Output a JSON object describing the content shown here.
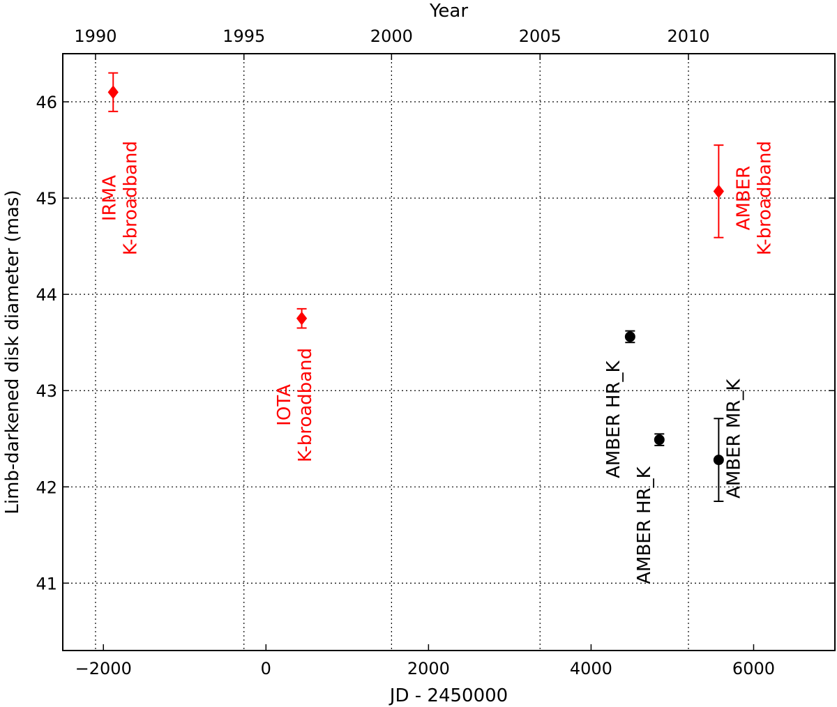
{
  "chart_data": {
    "type": "scatter",
    "title": "",
    "xlabel": "JD - 2450000",
    "ylabel": "Limb-darkened disk diameter (mas)",
    "top_xlabel": "Year",
    "xlim": [
      -2500,
      7000
    ],
    "ylim": [
      40.3,
      46.5
    ],
    "grid": true,
    "x_ticks": [
      -2000,
      0,
      2000,
      4000,
      6000
    ],
    "x_tick_labels": [
      "−2000",
      "0",
      "2000",
      "4000",
      "6000"
    ],
    "y_ticks": [
      41,
      42,
      43,
      44,
      45,
      46
    ],
    "y_tick_labels": [
      "41",
      "42",
      "43",
      "44",
      "45",
      "46"
    ],
    "top_ticks": [
      {
        "label": "1990",
        "jd": -2097
      },
      {
        "label": "1995",
        "jd": -271
      },
      {
        "label": "2000",
        "jd": 1545
      },
      {
        "label": "2005",
        "jd": 3372
      },
      {
        "label": "2010",
        "jd": 5198
      }
    ],
    "series": [
      {
        "name": "K-broadband",
        "color": "#ff0000",
        "marker": "diamond",
        "points": [
          {
            "x": -1880,
            "y": 46.1,
            "err": 0.2
          },
          {
            "x": 440,
            "y": 43.75,
            "err": 0.1
          },
          {
            "x": 5570,
            "y": 45.07,
            "err": 0.48
          }
        ]
      },
      {
        "name": "AMBER",
        "color": "#000000",
        "marker": "circle",
        "points": [
          {
            "x": 4480,
            "y": 43.56,
            "err": 0.06
          },
          {
            "x": 4840,
            "y": 42.49,
            "err": 0.06
          },
          {
            "x": 5570,
            "y": 42.28,
            "err": 0.43
          }
        ]
      }
    ],
    "annotations": [
      {
        "lines": [
          "IRMA",
          "K-broadband"
        ],
        "color": "#ff0000",
        "x": -1800,
        "y": 45.0
      },
      {
        "lines": [
          "IOTA",
          "K-broadband"
        ],
        "color": "#ff0000",
        "x": 350,
        "y": 42.85
      },
      {
        "lines": [
          "AMBER",
          "K-broadband"
        ],
        "color": "#ff0000",
        "x": 6000,
        "y": 45.0
      },
      {
        "lines": [
          "AMBER HR_K"
        ],
        "color": "#000000",
        "x": 4270,
        "y": 42.7
      },
      {
        "lines": [
          "AMBER HR_K"
        ],
        "color": "#000000",
        "x": 4650,
        "y": 41.6
      },
      {
        "lines": [
          "AMBER MR_K"
        ],
        "color": "#000000",
        "x": 5750,
        "y": 42.5
      }
    ]
  }
}
